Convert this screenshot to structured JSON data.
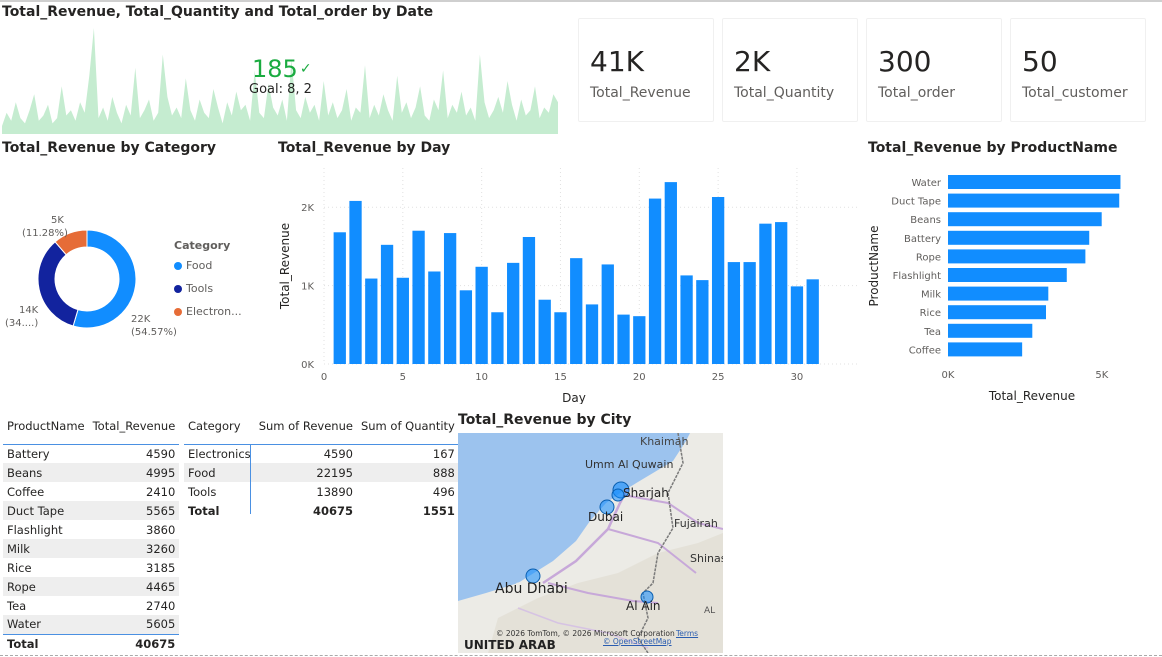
{
  "colors": {
    "bar": "#118dff",
    "food": "#118dff",
    "tools": "#12239e",
    "electronics": "#e66c37",
    "kpi_green": "#1aab40",
    "spark": "#c5ecd0"
  },
  "line_visual": {
    "title": "Total_Revenue, Total_Quantity and Total_order by Date",
    "kpi_value": "185",
    "kpi_icon": "check-icon",
    "goal_text": "Goal: 8, 2"
  },
  "cards": [
    {
      "value": "41K",
      "label": "Total_Revenue"
    },
    {
      "value": "2K",
      "label": "Total_Quantity"
    },
    {
      "value": "300",
      "label": "Total_order"
    },
    {
      "value": "50",
      "label": "Total_customer"
    }
  ],
  "category_chart": {
    "title": "Total_Revenue by Category",
    "legend_title": "Category",
    "legend": [
      "Food",
      "Tools",
      "Electron..."
    ],
    "labels": [
      {
        "l1": "22K",
        "l2": "(54.57%)"
      },
      {
        "l1": "14K",
        "l2": "(34....)"
      },
      {
        "l1": "5K",
        "l2": "(11.28%)"
      }
    ]
  },
  "day_chart": {
    "title": "Total_Revenue by Day"
  },
  "product_chart": {
    "title": "Total_Revenue by ProductName"
  },
  "map": {
    "title": "Total_Revenue by City",
    "places": [
      "Khaimah",
      "Umm Al Quwain",
      "Sharjah",
      "Dubai",
      "Fujairah",
      "Shinas",
      "Abu Dhabi",
      "Al Ain",
      "UNITED ARAB",
      "AL"
    ],
    "copyright": "© 2026 TomTom, © 2026 Microsoft Corporation",
    "terms": "Terms",
    "osm": "© OpenStreetMap"
  },
  "product_table": {
    "headers": [
      "ProductName",
      "Total_Revenue"
    ],
    "rows": [
      [
        "Battery",
        "4590"
      ],
      [
        "Beans",
        "4995"
      ],
      [
        "Coffee",
        "2410"
      ],
      [
        "Duct Tape",
        "5565"
      ],
      [
        "Flashlight",
        "3860"
      ],
      [
        "Milk",
        "3260"
      ],
      [
        "Rice",
        "3185"
      ],
      [
        "Rope",
        "4465"
      ],
      [
        "Tea",
        "2740"
      ],
      [
        "Water",
        "5605"
      ]
    ],
    "total": [
      "Total",
      "40675"
    ]
  },
  "category_table": {
    "headers": [
      "Category",
      "Sum of Revenue",
      "Sum of Quantity"
    ],
    "rows": [
      [
        "Electronics",
        "4590",
        "167"
      ],
      [
        "Food",
        "22195",
        "888"
      ],
      [
        "Tools",
        "13890",
        "496"
      ]
    ],
    "total": [
      "Total",
      "40675",
      "1551"
    ]
  },
  "chart_data": [
    {
      "type": "area",
      "title": "Total_Revenue, Total_Quantity and Total_order by Date",
      "values": [
        3,
        8,
        5,
        12,
        6,
        4,
        9,
        15,
        5,
        7,
        11,
        4,
        6,
        18,
        7,
        9,
        5,
        12,
        8,
        22,
        40,
        6,
        10,
        5,
        14,
        8,
        4,
        11,
        7,
        25,
        6,
        9,
        13,
        5,
        8,
        30,
        14,
        7,
        10,
        6,
        21,
        9,
        5,
        13,
        8,
        6,
        17,
        10,
        4,
        12,
        7,
        16,
        9,
        11,
        5,
        24,
        8,
        6,
        19,
        10,
        7,
        13,
        5,
        28,
        9,
        6,
        14,
        8,
        11,
        5,
        20,
        7,
        12,
        6,
        9,
        17,
        5,
        10,
        8,
        26,
        6,
        11,
        7,
        15,
        9,
        5,
        22,
        8,
        12,
        6,
        10,
        18,
        7,
        5,
        13,
        9,
        24,
        6,
        11,
        8,
        16,
        7,
        10,
        5,
        30,
        12,
        6,
        9,
        14,
        8,
        20,
        11,
        5,
        13,
        7,
        9,
        18,
        6,
        10,
        8,
        15,
        12
      ]
    },
    {
      "type": "pie",
      "title": "Total_Revenue by Category",
      "categories": [
        "Food",
        "Tools",
        "Electronics"
      ],
      "values": [
        22195,
        13890,
        4590
      ],
      "labels": [
        "22K (54.57%)",
        "14K (34....)",
        "5K (11.28%)"
      ]
    },
    {
      "type": "bar",
      "title": "Total_Revenue by Day",
      "xlabel": "Day",
      "ylabel": "Total_Revenue",
      "x": [
        1,
        2,
        3,
        4,
        5,
        6,
        7,
        8,
        9,
        10,
        11,
        12,
        13,
        14,
        15,
        16,
        17,
        18,
        19,
        20,
        21,
        22,
        23,
        24,
        25,
        26,
        27,
        28,
        29,
        30,
        31
      ],
      "values": [
        1680,
        2080,
        1090,
        1520,
        1100,
        1700,
        1180,
        1670,
        940,
        1240,
        660,
        1290,
        1620,
        820,
        660,
        1350,
        760,
        1270,
        630,
        610,
        2110,
        2320,
        1130,
        1070,
        2130,
        1300,
        1300,
        1790,
        1810,
        990,
        1080
      ],
      "ylim": [
        0,
        2500
      ],
      "yticks": [
        "0K",
        "1K",
        "2K"
      ],
      "xticks": [
        "0",
        "5",
        "10",
        "15",
        "20",
        "25",
        "30"
      ]
    },
    {
      "type": "bar",
      "orientation": "horizontal",
      "title": "Total_Revenue by ProductName",
      "xlabel": "Total_Revenue",
      "ylabel": "ProductName",
      "categories": [
        "Water",
        "Duct Tape",
        "Beans",
        "Battery",
        "Rope",
        "Flashlight",
        "Milk",
        "Rice",
        "Tea",
        "Coffee"
      ],
      "values": [
        5605,
        5565,
        4995,
        4590,
        4465,
        3860,
        3260,
        3185,
        2740,
        2410
      ],
      "xticks": [
        "0K",
        "5K"
      ]
    }
  ]
}
